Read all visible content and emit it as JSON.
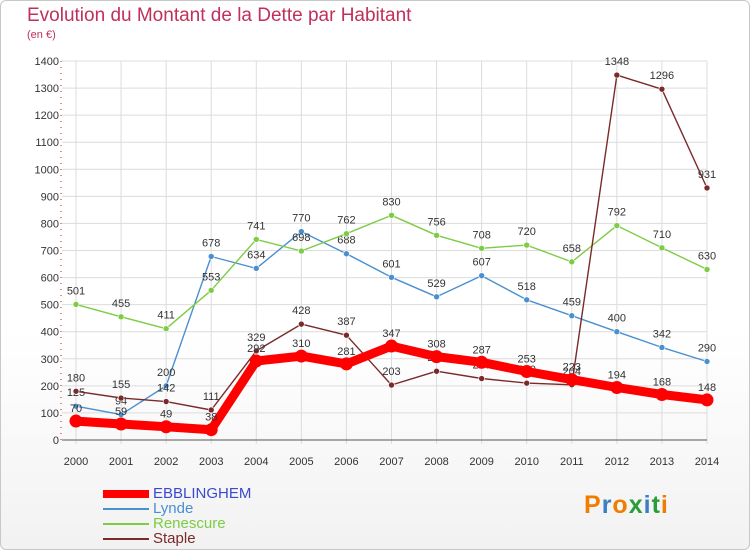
{
  "title": "Evolution du Montant de la Dette par Habitant",
  "unit": "(en €)",
  "logo": {
    "text": "Proxiti",
    "colors": [
      "#f07d00",
      "#3a7fc4",
      "#f07d00",
      "#2a9d3a",
      "#3a7fc4",
      "#2a9d3a",
      "#f07d00"
    ]
  },
  "chart_data": {
    "type": "line",
    "x": [
      "2000",
      "2001",
      "2002",
      "2003",
      "2004",
      "2005",
      "2006",
      "2007",
      "2008",
      "2009",
      "2010",
      "2011",
      "2012",
      "2013",
      "2014"
    ],
    "ylim": [
      0,
      1400
    ],
    "yticks": [
      0,
      100,
      200,
      300,
      400,
      500,
      600,
      700,
      800,
      900,
      1000,
      1100,
      1200,
      1300,
      1400
    ],
    "grid": true,
    "legend_position": "bottom",
    "series": [
      {
        "name": "EBBLINGHEM",
        "color": "#ff0000",
        "values": [
          70,
          59,
          49,
          38,
          292,
          310,
          281,
          347,
          308,
          287,
          253,
          223,
          194,
          168,
          148
        ]
      },
      {
        "name": "Lynde",
        "color": "#4a90d0",
        "values": [
          125,
          94,
          200,
          678,
          634,
          770,
          688,
          601,
          529,
          607,
          518,
          459,
          400,
          342,
          290
        ]
      },
      {
        "name": "Renescure",
        "color": "#7ccc44",
        "values": [
          501,
          455,
          411,
          553,
          741,
          698,
          762,
          830,
          756,
          708,
          720,
          658,
          792,
          710,
          630
        ]
      },
      {
        "name": "Staple",
        "color": "#7a2a2a",
        "values": [
          180,
          155,
          142,
          111,
          329,
          428,
          387,
          203,
          254,
          227,
          210,
          204,
          1348,
          1296,
          931
        ]
      }
    ]
  }
}
